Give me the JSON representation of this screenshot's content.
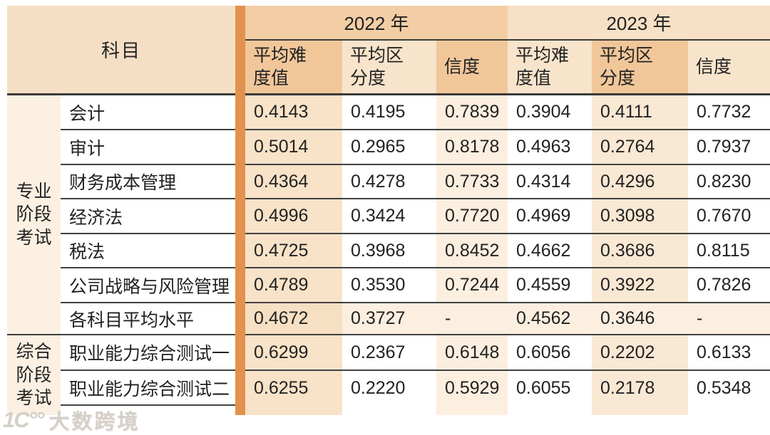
{
  "chart_data": {
    "type": "table",
    "header": {
      "subject": "科目",
      "years": [
        {
          "label": "2022 年",
          "cols": [
            "平均难\n度值",
            "平均区\n分度",
            "信度"
          ]
        },
        {
          "label": "2023 年",
          "cols": [
            "平均难\n度值",
            "平均区\n分度",
            "信度"
          ]
        }
      ]
    },
    "sections": [
      {
        "label": "专业\n阶段\n考试",
        "row_indexes": [
          0,
          1,
          2,
          3,
          4,
          5,
          6
        ]
      },
      {
        "label": "综合\n阶段\n考试",
        "row_indexes": [
          7,
          8
        ]
      }
    ],
    "rows": [
      {
        "subject": "会计",
        "values": [
          "0.4143",
          "0.4195",
          "0.7839",
          "0.3904",
          "0.4111",
          "0.7732"
        ],
        "summary": false
      },
      {
        "subject": "审计",
        "values": [
          "0.5014",
          "0.2965",
          "0.8178",
          "0.4963",
          "0.2764",
          "0.7937"
        ],
        "summary": false
      },
      {
        "subject": "财务成本管理",
        "values": [
          "0.4364",
          "0.4278",
          "0.7733",
          "0.4314",
          "0.4296",
          "0.8230"
        ],
        "summary": false
      },
      {
        "subject": "经济法",
        "values": [
          "0.4996",
          "0.3424",
          "0.7720",
          "0.4969",
          "0.3098",
          "0.7670"
        ],
        "summary": false
      },
      {
        "subject": "税法",
        "values": [
          "0.4725",
          "0.3968",
          "0.8452",
          "0.4662",
          "0.3686",
          "0.8115"
        ],
        "summary": false
      },
      {
        "subject": "公司战略与风险管理",
        "values": [
          "0.4789",
          "0.3530",
          "0.7244",
          "0.4559",
          "0.3922",
          "0.7826"
        ],
        "summary": false
      },
      {
        "subject": "各科目平均水平",
        "values": [
          "0.4672",
          "0.3727",
          "-",
          "0.4562",
          "0.3646",
          "-"
        ],
        "summary": true
      },
      {
        "subject": "职业能力综合测试一",
        "values": [
          "0.6299",
          "0.2367",
          "0.6148",
          "0.6056",
          "0.2202",
          "0.6133"
        ],
        "summary": false
      },
      {
        "subject": "职业能力综合测试二",
        "values": [
          "0.6255",
          "0.2220",
          "0.5929",
          "0.6055",
          "0.2178",
          "0.5348"
        ],
        "summary": false
      }
    ],
    "layout": {
      "grid": "off",
      "legend": "none"
    },
    "colors": {
      "accent_bar": "#e2924e",
      "header_dark": "#f1c79a",
      "header_light": "#f8e4cb",
      "band_2022": "#f3cda4",
      "band_2023": "#f8e0c6",
      "subject_header_bg": "#f5dfc4",
      "group_bg": "#fbf0e2",
      "stripe_peach": "#f8e3c8",
      "line": "#414141"
    }
  },
  "watermark": {
    "logo": "1C°°",
    "text": "大数跨境"
  }
}
